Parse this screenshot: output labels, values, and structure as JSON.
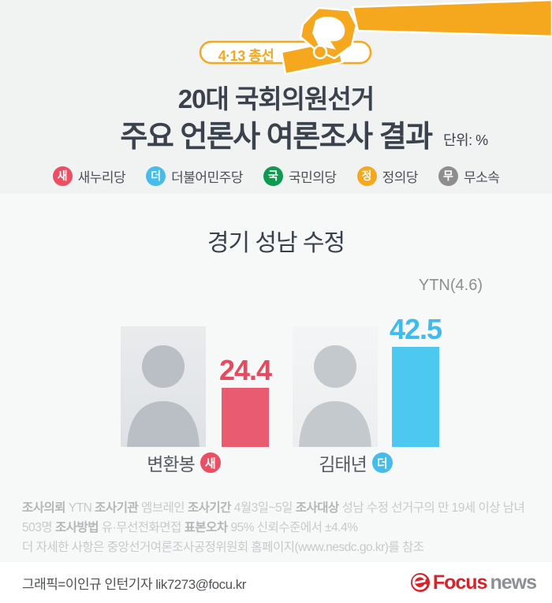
{
  "banner": {
    "badge_label": "4·13 총선"
  },
  "header": {
    "title_line1": "20대 국회의원선거",
    "title_line2": "주요 언론사 여론조사 결과",
    "unit_label": "단위: %"
  },
  "legend": {
    "items": [
      {
        "initial": "새",
        "name": "새누리당",
        "color": "#ec4f63"
      },
      {
        "initial": "더",
        "name": "더불어민주당",
        "color": "#45bceb"
      },
      {
        "initial": "국",
        "name": "국민의당",
        "color": "#0e9b51"
      },
      {
        "initial": "정",
        "name": "정의당",
        "color": "#f5a81e"
      },
      {
        "initial": "무",
        "name": "무소속",
        "color": "#8e8e8e"
      }
    ]
  },
  "chart_data": {
    "type": "bar",
    "title": "경기 성남 수정",
    "source_label": "YTN(4.6)",
    "unit": "%",
    "categories": [
      "변환봉",
      "김태년"
    ],
    "values": [
      24.4,
      42.5
    ],
    "ylim": [
      0,
      45
    ],
    "grid": false,
    "legend_position": "top",
    "candidates": [
      {
        "name": "변환봉",
        "party_initial": "새",
        "party": "새누리당",
        "value": "24.4",
        "bar_color": "#e95b70",
        "badge_color": "#ec4f63"
      },
      {
        "name": "김태년",
        "party_initial": "더",
        "party": "더불어민주당",
        "value": "42.5",
        "bar_color": "#4cc8f1",
        "badge_color": "#45bceb"
      }
    ]
  },
  "footnote": {
    "lines": [
      [
        {
          "b": 1,
          "t": "조사의뢰"
        },
        {
          "b": 0,
          "t": " YTN "
        },
        {
          "b": 1,
          "t": "조사기관"
        },
        {
          "b": 0,
          "t": " 엠브레인 "
        },
        {
          "b": 1,
          "t": "조사기간"
        },
        {
          "b": 0,
          "t": " 4월3일~5일 "
        },
        {
          "b": 1,
          "t": "조사대상"
        },
        {
          "b": 0,
          "t": " 성남 수정 선거구의 만 19세 이상 남녀"
        }
      ],
      [
        {
          "b": 0,
          "t": "503명 "
        },
        {
          "b": 1,
          "t": "조사방법"
        },
        {
          "b": 0,
          "t": " 유·무선전화면접 "
        },
        {
          "b": 1,
          "t": "표본오차"
        },
        {
          "b": 0,
          "t": " 95% 신뢰수준에서 ±4.4%"
        }
      ],
      [
        {
          "b": 0,
          "t": "더 자세한 사항은 중앙선거여론조사공정위원회 홈페이지(www.nesdc.go.kr)를 참조"
        }
      ]
    ]
  },
  "credit": {
    "text": "그래픽=이인규 인턴기자 lik7273@focu.kr"
  },
  "logo": {
    "brand_primary": "Focus",
    "brand_secondary": "news"
  },
  "colors": {
    "accent_orange": "#f5a71e",
    "title_dark": "#3a434d",
    "bg": "#f1f2f2",
    "logo_red": "#d8232a"
  }
}
